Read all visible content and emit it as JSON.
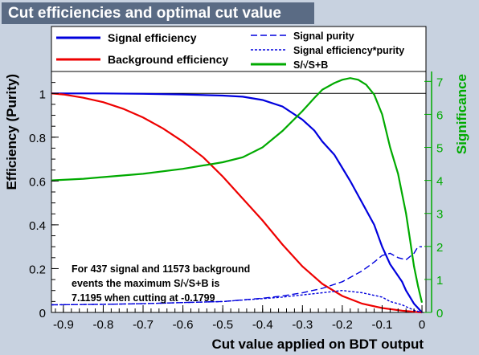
{
  "title": "Cut efficiencies and optimal cut value",
  "colors": {
    "signal": "#0000dd",
    "background": "#ee0000",
    "significance": "#00aa00",
    "frame_bg": "#c8d2e0",
    "title_bg": "#5a6b84"
  },
  "legend": [
    {
      "label": "Signal efficiency",
      "style": "solid",
      "color": "#0000dd"
    },
    {
      "label": "Background efficiency",
      "style": "solid",
      "color": "#ee0000"
    },
    {
      "label": "Signal purity",
      "style": "dashed",
      "color": "#0000dd"
    },
    {
      "label": "Signal efficiency*purity",
      "style": "dotted",
      "color": "#0000dd"
    },
    {
      "label": "S/√S+B",
      "style": "solid",
      "color": "#00aa00"
    }
  ],
  "annotation": {
    "line1": "For 437 signal and 11573 background",
    "line2": "events the maximum S/√S+B is",
    "line3": "7.1195 when cutting at -0.1799"
  },
  "chart_data": {
    "type": "line",
    "title": "Cut efficiencies and optimal cut value",
    "xlabel": "Cut value applied on BDT output",
    "ylabel": "Efficiency (Purity)",
    "y2label": "Significance",
    "xlim": [
      -0.93,
      0.01
    ],
    "ylim": [
      0,
      1.1
    ],
    "y2lim": [
      0,
      7.3
    ],
    "x_ticks": [
      "-0.9",
      "-0.8",
      "-0.7",
      "-0.6",
      "-0.5",
      "-0.4",
      "-0.3",
      "-0.2",
      "-0.1",
      "0"
    ],
    "y_ticks": [
      "0",
      "0.2",
      "0.4",
      "0.6",
      "0.8",
      "1"
    ],
    "y2_ticks": [
      "0",
      "1",
      "2",
      "3",
      "4",
      "5",
      "6",
      "7"
    ],
    "reference_line_y": 1.0,
    "optimal_cut": -0.1799,
    "max_significance": 7.1195,
    "series": [
      {
        "name": "Signal efficiency",
        "axis": "left",
        "x": [
          -0.93,
          -0.8,
          -0.7,
          -0.6,
          -0.5,
          -0.45,
          -0.4,
          -0.35,
          -0.3,
          -0.27,
          -0.25,
          -0.22,
          -0.2,
          -0.18,
          -0.15,
          -0.12,
          -0.1,
          -0.08,
          -0.05,
          -0.04,
          -0.03,
          -0.02,
          -0.01,
          0.0
        ],
        "y": [
          1.0,
          1.0,
          0.998,
          0.995,
          0.99,
          0.985,
          0.97,
          0.94,
          0.88,
          0.83,
          0.78,
          0.72,
          0.66,
          0.6,
          0.5,
          0.4,
          0.3,
          0.22,
          0.14,
          0.1,
          0.07,
          0.04,
          0.02,
          0.0
        ]
      },
      {
        "name": "Background efficiency",
        "axis": "left",
        "x": [
          -0.93,
          -0.9,
          -0.85,
          -0.8,
          -0.75,
          -0.7,
          -0.65,
          -0.6,
          -0.55,
          -0.5,
          -0.45,
          -0.4,
          -0.35,
          -0.3,
          -0.25,
          -0.2,
          -0.15,
          -0.1,
          -0.05,
          -0.02,
          0.0
        ],
        "y": [
          1.0,
          0.995,
          0.98,
          0.96,
          0.93,
          0.89,
          0.84,
          0.78,
          0.71,
          0.62,
          0.52,
          0.42,
          0.31,
          0.21,
          0.13,
          0.075,
          0.04,
          0.02,
          0.008,
          0.003,
          0.0
        ]
      },
      {
        "name": "Signal purity",
        "axis": "left",
        "x": [
          -0.93,
          -0.8,
          -0.7,
          -0.6,
          -0.5,
          -0.4,
          -0.35,
          -0.3,
          -0.25,
          -0.2,
          -0.15,
          -0.12,
          -0.1,
          -0.08,
          -0.06,
          -0.04,
          -0.02,
          -0.01,
          0.0
        ],
        "y": [
          0.035,
          0.037,
          0.04,
          0.045,
          0.05,
          0.065,
          0.075,
          0.09,
          0.11,
          0.14,
          0.19,
          0.23,
          0.26,
          0.27,
          0.25,
          0.24,
          0.27,
          0.3,
          0.3
        ]
      },
      {
        "name": "Signal efficiency*purity",
        "axis": "left",
        "x": [
          -0.93,
          -0.8,
          -0.7,
          -0.6,
          -0.5,
          -0.4,
          -0.35,
          -0.3,
          -0.25,
          -0.2,
          -0.15,
          -0.1,
          -0.08,
          -0.05,
          -0.02,
          0.0
        ],
        "y": [
          0.035,
          0.037,
          0.04,
          0.045,
          0.05,
          0.063,
          0.07,
          0.08,
          0.09,
          0.1,
          0.09,
          0.07,
          0.05,
          0.035,
          0.01,
          0.0
        ]
      },
      {
        "name": "S/√S+B",
        "axis": "right",
        "x": [
          -0.93,
          -0.85,
          -0.8,
          -0.7,
          -0.6,
          -0.5,
          -0.45,
          -0.4,
          -0.35,
          -0.3,
          -0.27,
          -0.25,
          -0.22,
          -0.2,
          -0.18,
          -0.16,
          -0.14,
          -0.12,
          -0.1,
          -0.08,
          -0.06,
          -0.04,
          -0.03,
          -0.02,
          -0.01,
          0.0
        ],
        "y": [
          4.0,
          4.05,
          4.1,
          4.2,
          4.35,
          4.55,
          4.7,
          5.0,
          5.5,
          6.1,
          6.5,
          6.75,
          6.95,
          7.05,
          7.1,
          7.05,
          6.9,
          6.6,
          6.0,
          5.0,
          4.2,
          3.0,
          2.2,
          1.4,
          0.8,
          0.3
        ]
      }
    ]
  }
}
